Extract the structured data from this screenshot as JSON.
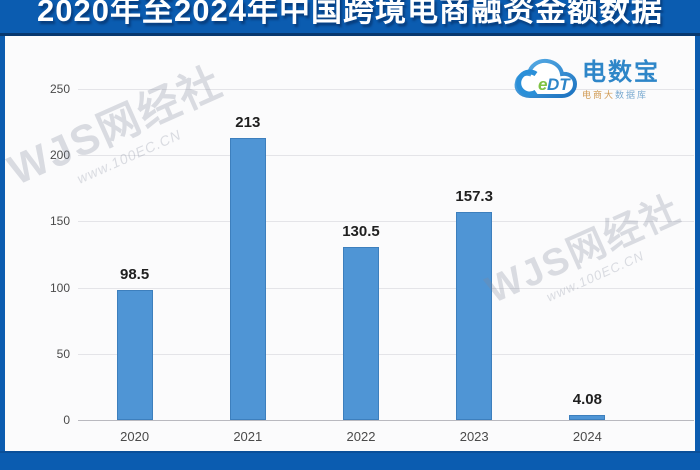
{
  "header": {
    "title": "2020年至2024年中国跨境电商融资金额数据"
  },
  "logo": {
    "cloud_text_e": "e",
    "cloud_text_dt": "DT",
    "name": "电数宝",
    "tagline_left": "电商大",
    "tagline_right": "数据库"
  },
  "watermark": {
    "brand": "WJS网经社",
    "url": "www.100EC.CN"
  },
  "chart_data": {
    "type": "bar",
    "title": "2020年至2024年中国跨境电商融资金额数据",
    "categories": [
      "2020",
      "2021",
      "2022",
      "2023",
      "2024"
    ],
    "values": [
      98.5,
      213,
      130.5,
      157.3,
      4.08
    ],
    "value_labels": [
      "98.5",
      "213",
      "130.5",
      "157.3",
      "4.08"
    ],
    "xlabel": "",
    "ylabel": "",
    "ylim": [
      0,
      250
    ],
    "yticks": [
      0,
      50,
      100,
      150,
      200,
      250
    ],
    "grid": true,
    "legend": false,
    "bar_color": "#4f95d5"
  },
  "colors": {
    "banner_blue": "#0b5cb0",
    "banner_border": "#07386f",
    "bar_blue": "#4f95d5",
    "logo_blue": "#2e86c8",
    "logo_green": "#7fc243",
    "tagline_orange": "#d09a52",
    "watermark_gray": "rgba(128,136,153,0.28)"
  }
}
